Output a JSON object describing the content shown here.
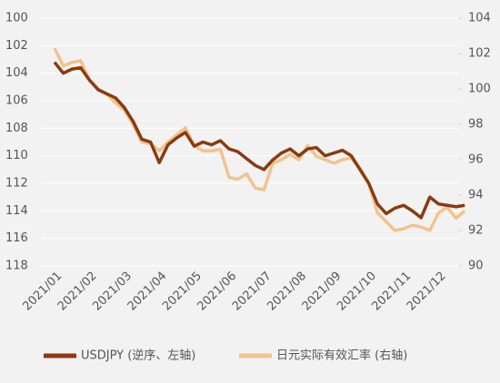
{
  "chart_data": {
    "type": "line",
    "categories": [
      "2021/01",
      null,
      null,
      null,
      "2021/02",
      null,
      null,
      null,
      "2021/03",
      null,
      null,
      null,
      "2021/04",
      null,
      null,
      null,
      "2021/05",
      null,
      null,
      null,
      "2021/06",
      null,
      null,
      null,
      "2021/07",
      null,
      null,
      null,
      "2021/08",
      null,
      null,
      null,
      "2021/09",
      null,
      null,
      null,
      "2021/10",
      null,
      null,
      null,
      "2021/11",
      null,
      null,
      null,
      "2021/12",
      null,
      null,
      null
    ],
    "series": [
      {
        "name": "USDJPY (逆序、左轴)",
        "color": "#8b3a0f",
        "axis": "y",
        "values": [
          103.2,
          104.0,
          103.7,
          103.6,
          104.5,
          105.2,
          105.5,
          105.8,
          106.5,
          107.5,
          108.8,
          109.0,
          110.5,
          109.2,
          108.7,
          108.3,
          109.3,
          109.0,
          109.2,
          108.9,
          109.5,
          109.7,
          110.2,
          110.7,
          111.0,
          110.3,
          109.8,
          109.5,
          110.0,
          109.5,
          109.4,
          110.0,
          109.8,
          109.6,
          110.0,
          111.0,
          112.0,
          113.5,
          114.2,
          113.8,
          113.6,
          114.0,
          114.5,
          113.0,
          113.5,
          113.6,
          113.7,
          113.6
        ]
      },
      {
        "name": "日元实际有效汇率 (右轴)",
        "color": "#f2c38e",
        "axis": "y2",
        "values": [
          102.3,
          101.3,
          101.5,
          101.6,
          100.5,
          100.0,
          99.7,
          99.2,
          98.8,
          98.0,
          97.0,
          96.9,
          96.5,
          97.0,
          97.4,
          97.8,
          96.8,
          96.5,
          96.5,
          96.6,
          95.0,
          94.9,
          95.2,
          94.4,
          94.3,
          95.8,
          96.0,
          96.3,
          96.0,
          96.8,
          96.2,
          96.0,
          95.8,
          96.0,
          96.1,
          95.5,
          94.7,
          93.0,
          92.5,
          92.0,
          92.1,
          92.3,
          92.2,
          92.0,
          93.0,
          93.3,
          92.7,
          93.1
        ]
      }
    ],
    "ylim": [
      100,
      118
    ],
    "y_reversed": true,
    "yticks": [
      100,
      102,
      104,
      106,
      108,
      110,
      112,
      114,
      116,
      118
    ],
    "y2lim": [
      90,
      104
    ],
    "y2ticks": [
      90,
      92,
      94,
      96,
      98,
      100,
      102,
      104
    ],
    "grid": true,
    "legend": "bottom"
  }
}
